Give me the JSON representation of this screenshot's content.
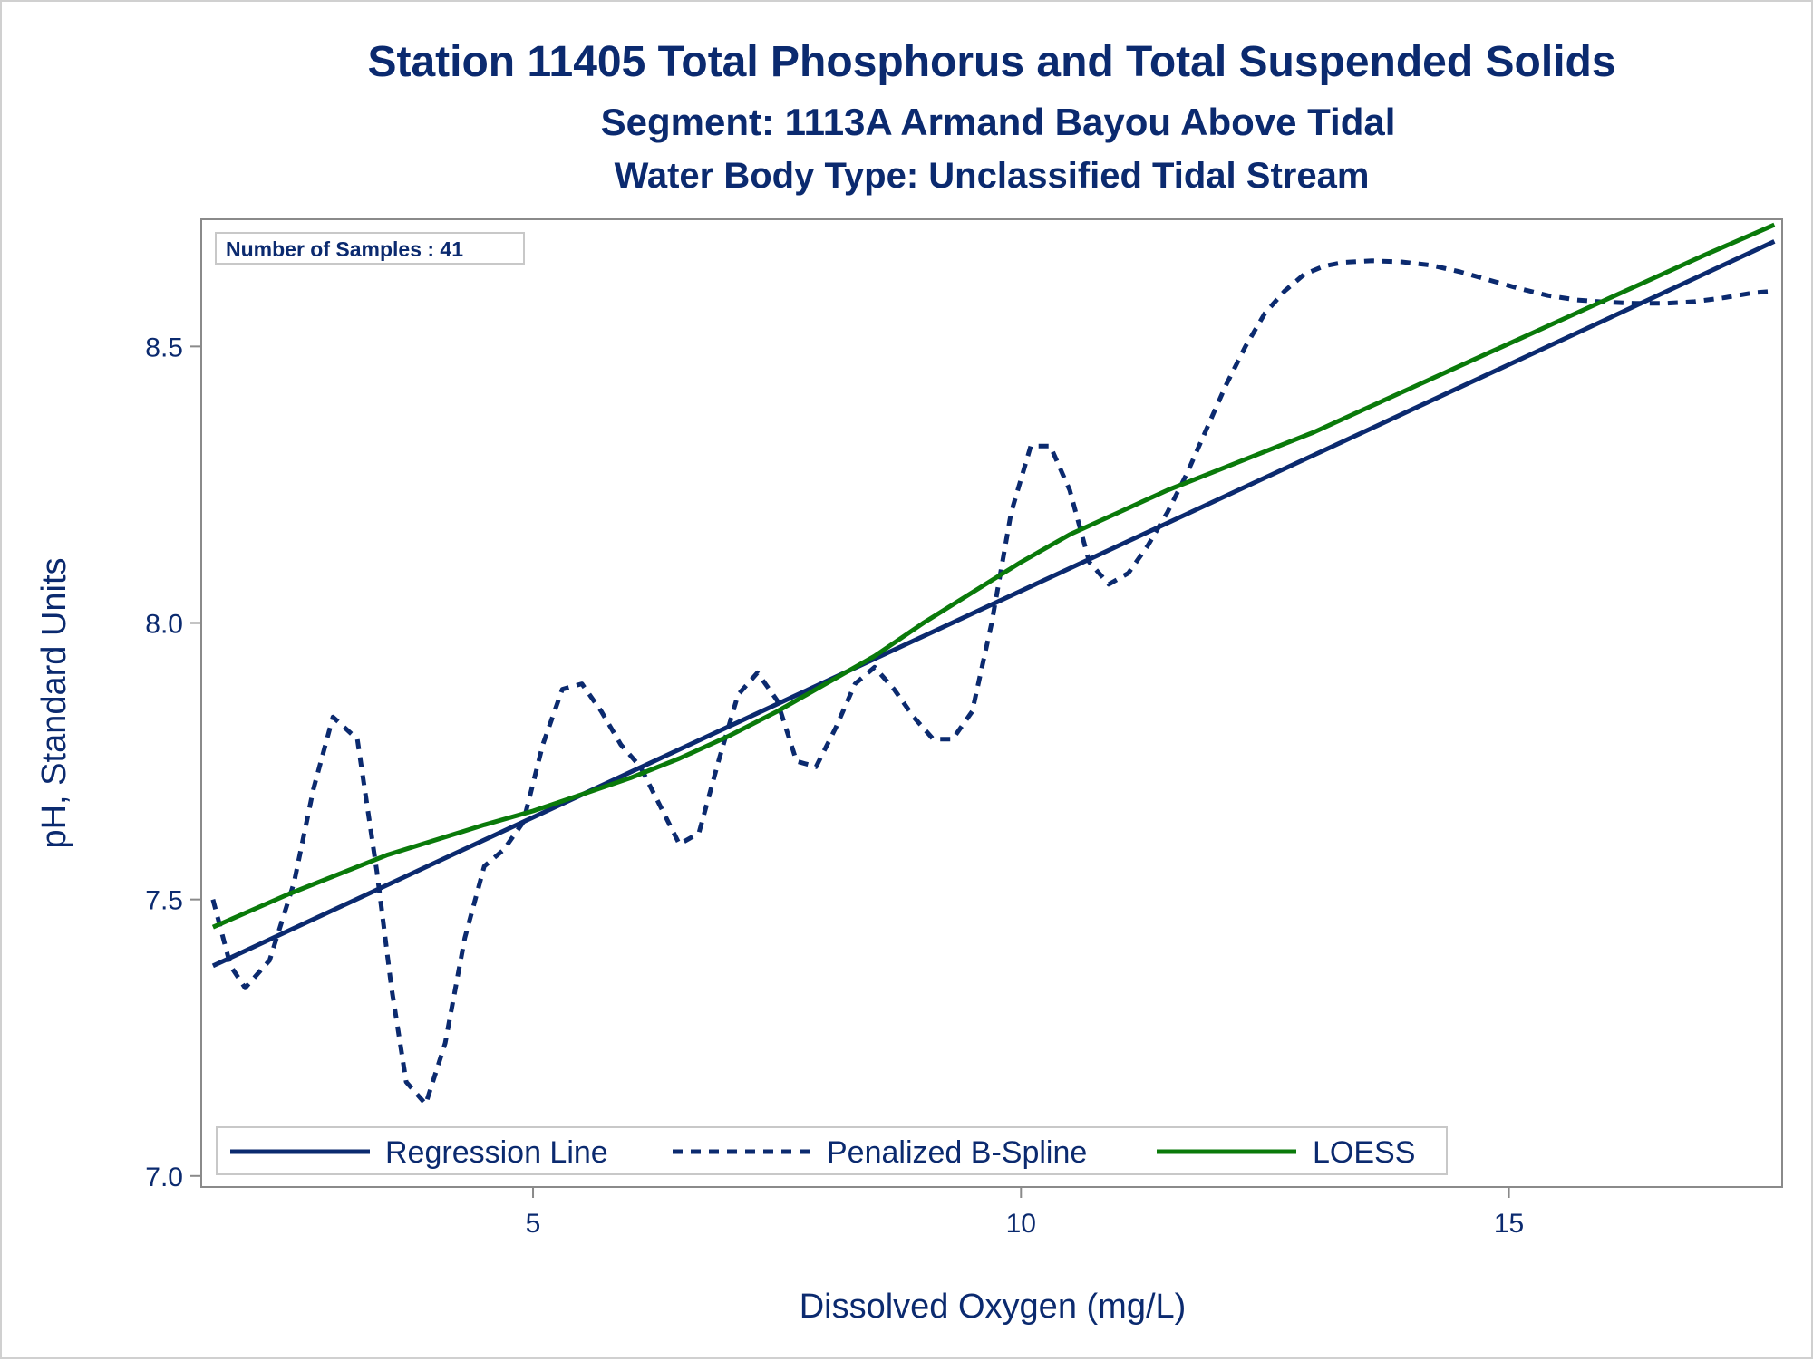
{
  "chart_data": {
    "type": "line",
    "title": "Station 11405  Total Phosphorus and Total Suspended Solids",
    "subtitle": "Segment: 1113A  Armand Bayou Above Tidal",
    "subtitle2": "Water Body Type: Unclassified Tidal Stream",
    "xlabel": "Dissolved Oxygen (mg/L)",
    "ylabel": "pH, Standard Units",
    "xlim": [
      1.6,
      17.8
    ],
    "ylim": [
      6.98,
      8.73
    ],
    "xticks": [
      5,
      10,
      15
    ],
    "xtick_labels": [
      "5",
      "10",
      "15"
    ],
    "yticks": [
      7.0,
      7.5,
      8.0,
      8.5
    ],
    "ytick_labels": [
      "7.0",
      "7.5",
      "8.0",
      "8.5"
    ],
    "grid": false,
    "legend_position": "bottom-left inside",
    "inset_text": "Number of Samples : 41",
    "series": [
      {
        "name": "Regression Line",
        "style": "solid",
        "color": "#0b2a6f",
        "x": [
          1.72,
          17.72
        ],
        "y": [
          7.38,
          8.69
        ]
      },
      {
        "name": "Penalized B-Spline",
        "style": "dashed",
        "color": "#0b2a6f",
        "x": [
          1.72,
          1.9,
          2.05,
          2.3,
          2.55,
          2.75,
          2.95,
          3.2,
          3.4,
          3.55,
          3.7,
          3.9,
          4.1,
          4.3,
          4.5,
          4.7,
          4.9,
          5.1,
          5.3,
          5.5,
          5.7,
          5.9,
          6.1,
          6.3,
          6.5,
          6.7,
          6.9,
          7.1,
          7.3,
          7.5,
          7.7,
          7.9,
          8.1,
          8.3,
          8.5,
          8.7,
          8.9,
          9.1,
          9.3,
          9.5,
          9.7,
          9.9,
          10.1,
          10.3,
          10.5,
          10.7,
          10.9,
          11.1,
          11.3,
          11.5,
          11.7,
          11.9,
          12.1,
          12.3,
          12.5,
          12.7,
          12.9,
          13.1,
          13.3,
          13.6,
          13.9,
          14.2,
          14.5,
          14.8,
          15.1,
          15.4,
          15.7,
          16.0,
          16.3,
          16.6,
          16.9,
          17.2,
          17.5,
          17.72
        ],
        "y": [
          7.5,
          7.38,
          7.34,
          7.39,
          7.53,
          7.7,
          7.83,
          7.79,
          7.55,
          7.34,
          7.17,
          7.13,
          7.24,
          7.43,
          7.56,
          7.59,
          7.64,
          7.78,
          7.88,
          7.89,
          7.84,
          7.78,
          7.74,
          7.67,
          7.6,
          7.62,
          7.75,
          7.87,
          7.91,
          7.86,
          7.75,
          7.74,
          7.81,
          7.89,
          7.92,
          7.88,
          7.83,
          7.79,
          7.79,
          7.84,
          8.0,
          8.2,
          8.32,
          8.32,
          8.24,
          8.11,
          8.07,
          8.09,
          8.14,
          8.2,
          8.27,
          8.35,
          8.43,
          8.5,
          8.56,
          8.6,
          8.63,
          8.645,
          8.652,
          8.655,
          8.653,
          8.647,
          8.635,
          8.62,
          8.605,
          8.592,
          8.584,
          8.58,
          8.578,
          8.578,
          8.581,
          8.588,
          8.597,
          8.6
        ]
      },
      {
        "name": "LOESS",
        "style": "solid",
        "color": "#0a7a0a",
        "x": [
          1.72,
          2.5,
          3.5,
          4.5,
          5.0,
          5.5,
          6.0,
          6.5,
          7.0,
          7.5,
          8.0,
          8.5,
          9.0,
          9.5,
          10.0,
          10.5,
          11.0,
          11.5,
          12.0,
          12.5,
          13.0,
          13.5,
          14.0,
          14.5,
          15.0,
          15.5,
          16.0,
          16.5,
          17.0,
          17.72
        ],
        "y": [
          7.45,
          7.51,
          7.58,
          7.635,
          7.66,
          7.69,
          7.72,
          7.755,
          7.795,
          7.84,
          7.89,
          7.94,
          8.0,
          8.055,
          8.11,
          8.16,
          8.2,
          8.24,
          8.275,
          8.31,
          8.345,
          8.385,
          8.425,
          8.465,
          8.505,
          8.545,
          8.585,
          8.625,
          8.665,
          8.72
        ]
      }
    ]
  }
}
